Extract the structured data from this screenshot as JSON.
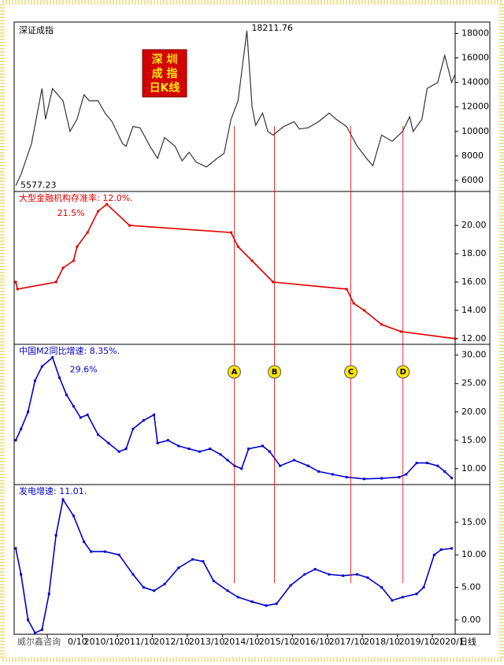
{
  "header": {
    "logo": [
      "深 圳",
      "成 指",
      "日K线"
    ]
  },
  "footer": {
    "watermark": "威尔鑫咨询",
    "period": "日线"
  },
  "events": [
    {
      "label": "A",
      "x": 2015.09
    },
    {
      "label": "B",
      "x": 2016.24
    },
    {
      "label": "C",
      "x": 2018.42
    },
    {
      "label": "D",
      "x": 2019.91
    }
  ],
  "chart_data": [
    {
      "type": "line",
      "title": "深证成指",
      "color": "#333333",
      "ylim": [
        5100,
        18800
      ],
      "yticks": [
        6000,
        8000,
        10000,
        12000,
        14000,
        16000,
        18000
      ],
      "x": [
        2008.85,
        2009.0,
        2009.3,
        2009.6,
        2009.7,
        2009.9,
        2010.2,
        2010.4,
        2010.6,
        2010.8,
        2010.95,
        2011.2,
        2011.4,
        2011.6,
        2011.9,
        2012.0,
        2012.2,
        2012.4,
        2012.7,
        2012.9,
        2013.1,
        2013.4,
        2013.6,
        2013.8,
        2014.0,
        2014.3,
        2014.6,
        2014.8,
        2015.0,
        2015.2,
        2015.45,
        2015.6,
        2015.7,
        2015.9,
        2016.05,
        2016.2,
        2016.5,
        2016.8,
        2016.95,
        2017.2,
        2017.5,
        2017.8,
        2018.0,
        2018.3,
        2018.6,
        2018.9,
        2019.05,
        2019.3,
        2019.6,
        2019.9,
        2020.1,
        2020.2,
        2020.45,
        2020.6,
        2020.9,
        2021.1,
        2021.3,
        2021.4
      ],
      "values": [
        5577.23,
        6500,
        9000,
        13500,
        11000,
        13500,
        12500,
        10000,
        11000,
        13000,
        12500,
        12500,
        11500,
        10800,
        9000,
        8800,
        10400,
        10300,
        8700,
        7800,
        9500,
        8800,
        7600,
        8300,
        7500,
        7100,
        7800,
        8200,
        11000,
        12500,
        18211.76,
        12000,
        10500,
        11500,
        10000,
        9700,
        10400,
        10800,
        10200,
        10300,
        10800,
        11500,
        11000,
        10400,
        8800,
        7700,
        7200,
        9700,
        9200,
        10000,
        11200,
        10000,
        11000,
        13500,
        14000,
        16200,
        14000,
        14700
      ],
      "annotations": [
        {
          "x": 2015.45,
          "value": 18211.76
        },
        {
          "x": 2008.85,
          "value": 5577.23
        }
      ]
    },
    {
      "type": "line",
      "title": "大型金融机构存准率: 12.0%.",
      "color": "#e00000",
      "ylim": [
        11.6,
        22.4
      ],
      "yticks": [
        {
          "value": 12,
          "label": "12.00"
        },
        {
          "value": 14,
          "label": "14.00"
        },
        {
          "value": 16,
          "label": "16.00"
        },
        {
          "value": 18,
          "label": "18.00"
        },
        {
          "value": 20,
          "label": "20.00"
        }
      ],
      "x": [
        2008.85,
        2008.9,
        2010.0,
        2010.2,
        2010.5,
        2010.6,
        2010.9,
        2011.2,
        2011.45,
        2012.1,
        2015.0,
        2015.2,
        2015.6,
        2016.2,
        2018.3,
        2018.5,
        2018.8,
        2019.3,
        2019.85,
        2021.4
      ],
      "values": [
        16.0,
        15.5,
        16.0,
        17.0,
        17.5,
        18.5,
        19.5,
        21.0,
        21.5,
        20.0,
        19.5,
        18.5,
        17.5,
        16.0,
        15.5,
        14.5,
        14.0,
        13.0,
        12.5,
        12.0
      ],
      "annotations": [
        {
          "x": 2011.45,
          "value": 21.5,
          "label": "21.5%"
        }
      ]
    },
    {
      "type": "line",
      "title": "中国M2同比增速: 8.35%.",
      "color": "#0000cc",
      "ylim": [
        7.2,
        31.9
      ],
      "yticks": [
        {
          "value": 10,
          "label": "10.00"
        },
        {
          "value": 15,
          "label": "15.00"
        },
        {
          "value": 20,
          "label": "20.00"
        },
        {
          "value": 25,
          "label": "25.00"
        },
        {
          "value": 30,
          "label": "30.00"
        }
      ],
      "x": [
        2008.85,
        2009.0,
        2009.2,
        2009.4,
        2009.6,
        2009.9,
        2010.1,
        2010.3,
        2010.5,
        2010.7,
        2010.9,
        2011.2,
        2011.5,
        2011.8,
        2012.0,
        2012.2,
        2012.5,
        2012.8,
        2012.9,
        2013.2,
        2013.5,
        2013.8,
        2014.1,
        2014.4,
        2014.7,
        2014.9,
        2015.1,
        2015.3,
        2015.5,
        2015.9,
        2016.1,
        2016.4,
        2016.8,
        2017.2,
        2017.5,
        2017.9,
        2018.3,
        2018.8,
        2019.3,
        2019.8,
        2020.0,
        2020.3,
        2020.6,
        2020.9,
        2021.1,
        2021.3
      ],
      "values": [
        15,
        17,
        20,
        25.5,
        28,
        29.6,
        26,
        23,
        21,
        19,
        19.5,
        16,
        14.5,
        13,
        13.5,
        17,
        18.5,
        19.5,
        14.5,
        15,
        14,
        13.5,
        13,
        13.5,
        12.5,
        11.5,
        10.5,
        10,
        13.5,
        14,
        13,
        10.5,
        11.5,
        10.5,
        9.5,
        9,
        8.5,
        8.2,
        8.3,
        8.5,
        9,
        11,
        11,
        10.5,
        9.5,
        8.35
      ],
      "annotations": [
        {
          "x": 2009.9,
          "value": 29.6,
          "label": "29.6%"
        }
      ]
    },
    {
      "type": "line",
      "title": "发电增速: 11.01.",
      "color": "#0000cc",
      "ylim": [
        -2.2,
        20.8
      ],
      "yticks": [
        {
          "value": 0,
          "label": "0.00"
        },
        {
          "value": 5,
          "label": "5.00"
        },
        {
          "value": 10,
          "label": "10.00"
        },
        {
          "value": 15,
          "label": "15.00"
        }
      ],
      "xlim": [
        2008.85,
        2021.4
      ],
      "xticks": [
        {
          "value": 2009.75,
          "label": "0/10"
        },
        {
          "value": 2010.75,
          "label": "2010/10"
        },
        {
          "value": 2011.75,
          "label": "2011/10"
        },
        {
          "value": 2012.75,
          "label": "2012/10"
        },
        {
          "value": 2013.75,
          "label": "2013/10"
        },
        {
          "value": 2014.75,
          "label": "2014/10"
        },
        {
          "value": 2015.75,
          "label": "2015/10"
        },
        {
          "value": 2016.75,
          "label": "2016/10"
        },
        {
          "value": 2017.75,
          "label": "2017/10"
        },
        {
          "value": 2018.75,
          "label": "2018/10"
        },
        {
          "value": 2019.75,
          "label": "2019/10"
        },
        {
          "value": 2020.75,
          "label": "2020/1"
        }
      ],
      "x": [
        2008.85,
        2009.0,
        2009.2,
        2009.4,
        2009.6,
        2009.8,
        2010.0,
        2010.2,
        2010.5,
        2010.8,
        2011.0,
        2011.4,
        2011.8,
        2012.2,
        2012.5,
        2012.8,
        2013.1,
        2013.5,
        2013.9,
        2014.2,
        2014.5,
        2014.9,
        2015.2,
        2015.6,
        2016.0,
        2016.3,
        2016.7,
        2017.1,
        2017.4,
        2017.8,
        2018.2,
        2018.6,
        2018.9,
        2019.3,
        2019.6,
        2019.9,
        2020.3,
        2020.5,
        2020.8,
        2021.0,
        2021.3
      ],
      "values": [
        11,
        7,
        0,
        -2,
        -1.5,
        4,
        13,
        18.5,
        16,
        12,
        10.5,
        10.5,
        10,
        7,
        5,
        4.5,
        5.5,
        8,
        9.3,
        9,
        6,
        4.5,
        3.5,
        2.8,
        2.2,
        2.5,
        5.3,
        7,
        7.8,
        7,
        6.8,
        7,
        6.5,
        5,
        3,
        3.5,
        4,
        5,
        10,
        10.8,
        11
      ]
    }
  ]
}
